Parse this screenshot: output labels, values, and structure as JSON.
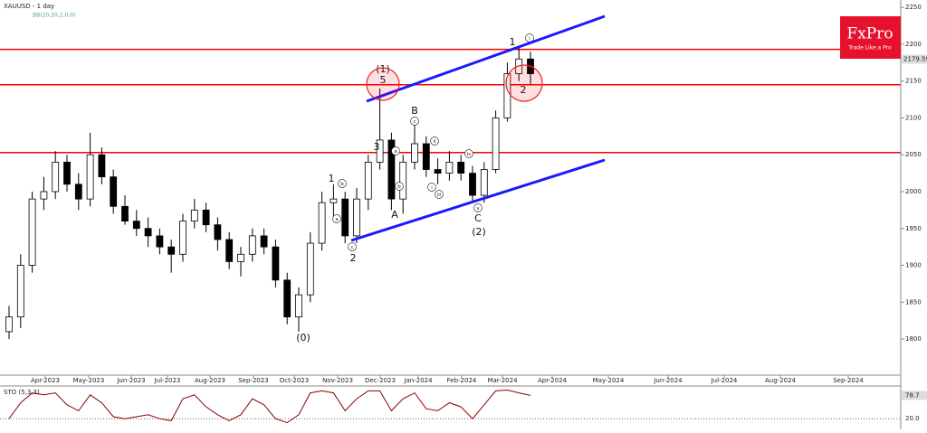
{
  "chart_data": [
    {
      "type": "candlestick",
      "title": "XAUUSD - 1 day",
      "subtitle": "BB(20,20,2,0,0)",
      "xticks": [
        "Apr-2023",
        "May-2023",
        "Jun-2023",
        "Jul-2023",
        "Aug-2023",
        "Sep-2023",
        "Oct-2023",
        "Nov-2023",
        "Dec-2023",
        "Jan-2024",
        "Feb-2024",
        "Mar-2024",
        "Apr-2024",
        "May-2024",
        "Jun-2024",
        "Jul-2024",
        "Aug-2024",
        "Sep-2024"
      ],
      "open": [
        1810,
        1830,
        1900,
        1990,
        2000,
        2040,
        2010,
        1990,
        2050,
        2020,
        1980,
        1960,
        1950,
        1940,
        1925,
        1915,
        1960,
        1975,
        1955,
        1935,
        1905,
        1915,
        1940,
        1925,
        1880,
        1830,
        1860,
        1930,
        1985,
        1990,
        1940,
        1990,
        2040,
        2070,
        1990,
        2040,
        2065,
        2030,
        2025,
        2040,
        2025,
        1995,
        2030,
        2100,
        2160,
        2180
      ],
      "high": [
        1845,
        1915,
        2000,
        2020,
        2055,
        2050,
        2025,
        2080,
        2060,
        2030,
        1995,
        1975,
        1965,
        1950,
        1935,
        1970,
        1990,
        1985,
        1965,
        1945,
        1925,
        1950,
        1950,
        1935,
        1890,
        1870,
        1945,
        2000,
        2010,
        2000,
        2005,
        2050,
        2140,
        2080,
        2050,
        2090,
        2075,
        2045,
        2055,
        2050,
        2035,
        2040,
        2110,
        2175,
        2195,
        2190
      ],
      "low": [
        1800,
        1815,
        1890,
        1975,
        1990,
        2000,
        1975,
        1980,
        2010,
        1970,
        1955,
        1940,
        1925,
        1915,
        1890,
        1905,
        1950,
        1945,
        1920,
        1895,
        1885,
        1905,
        1915,
        1870,
        1820,
        1810,
        1850,
        1920,
        1960,
        1930,
        1930,
        1975,
        2030,
        1975,
        1970,
        2030,
        2020,
        2010,
        2015,
        2015,
        1985,
        1985,
        2025,
        2095,
        2150,
        2145
      ],
      "close": [
        1830,
        1900,
        1990,
        2000,
        2040,
        2010,
        1990,
        2050,
        2020,
        1980,
        1960,
        1950,
        1940,
        1925,
        1915,
        1960,
        1975,
        1955,
        1935,
        1905,
        1915,
        1940,
        1925,
        1880,
        1830,
        1860,
        1930,
        1985,
        1990,
        1940,
        1990,
        2040,
        2070,
        1990,
        2040,
        2065,
        2030,
        2025,
        2040,
        2025,
        1995,
        2030,
        2100,
        2160,
        2180,
        2160
      ],
      "ylim": [
        1751,
        2260
      ],
      "yticks": [
        1800,
        1850,
        1900,
        1950,
        2000,
        2050,
        2100,
        2150,
        2200,
        2250
      ],
      "last_price": 2179.59,
      "levels": [
        2193,
        2145,
        2053
      ],
      "level_color": "#ff0000",
      "channel_color": "#1a1aff",
      "annotations": [
        "(1)",
        "5",
        "3",
        "B",
        "1",
        "A",
        "2",
        "C",
        "(2)",
        "(0)",
        "1",
        "2"
      ],
      "wave_labels": [
        "a",
        "b",
        "c",
        "a",
        "b",
        "c",
        "i",
        "ii",
        "iii",
        "iv",
        "v",
        "i"
      ]
    },
    {
      "type": "line",
      "title": "STO (5,3,3)",
      "color": "#8b0000",
      "values": [
        20,
        60,
        85,
        80,
        85,
        55,
        40,
        80,
        60,
        25,
        20,
        25,
        30,
        20,
        15,
        70,
        80,
        50,
        30,
        15,
        30,
        70,
        55,
        20,
        10,
        30,
        85,
        90,
        85,
        40,
        70,
        90,
        90,
        40,
        70,
        85,
        45,
        40,
        60,
        50,
        20,
        55,
        90,
        92,
        85,
        78.7
      ],
      "ylim": [
        0,
        100
      ],
      "yticks": [
        {
          "value": 20,
          "label": "20.0"
        }
      ]
    }
  ],
  "logo": {
    "name": "FxPro",
    "tagline": "Trade Like a Pro"
  }
}
